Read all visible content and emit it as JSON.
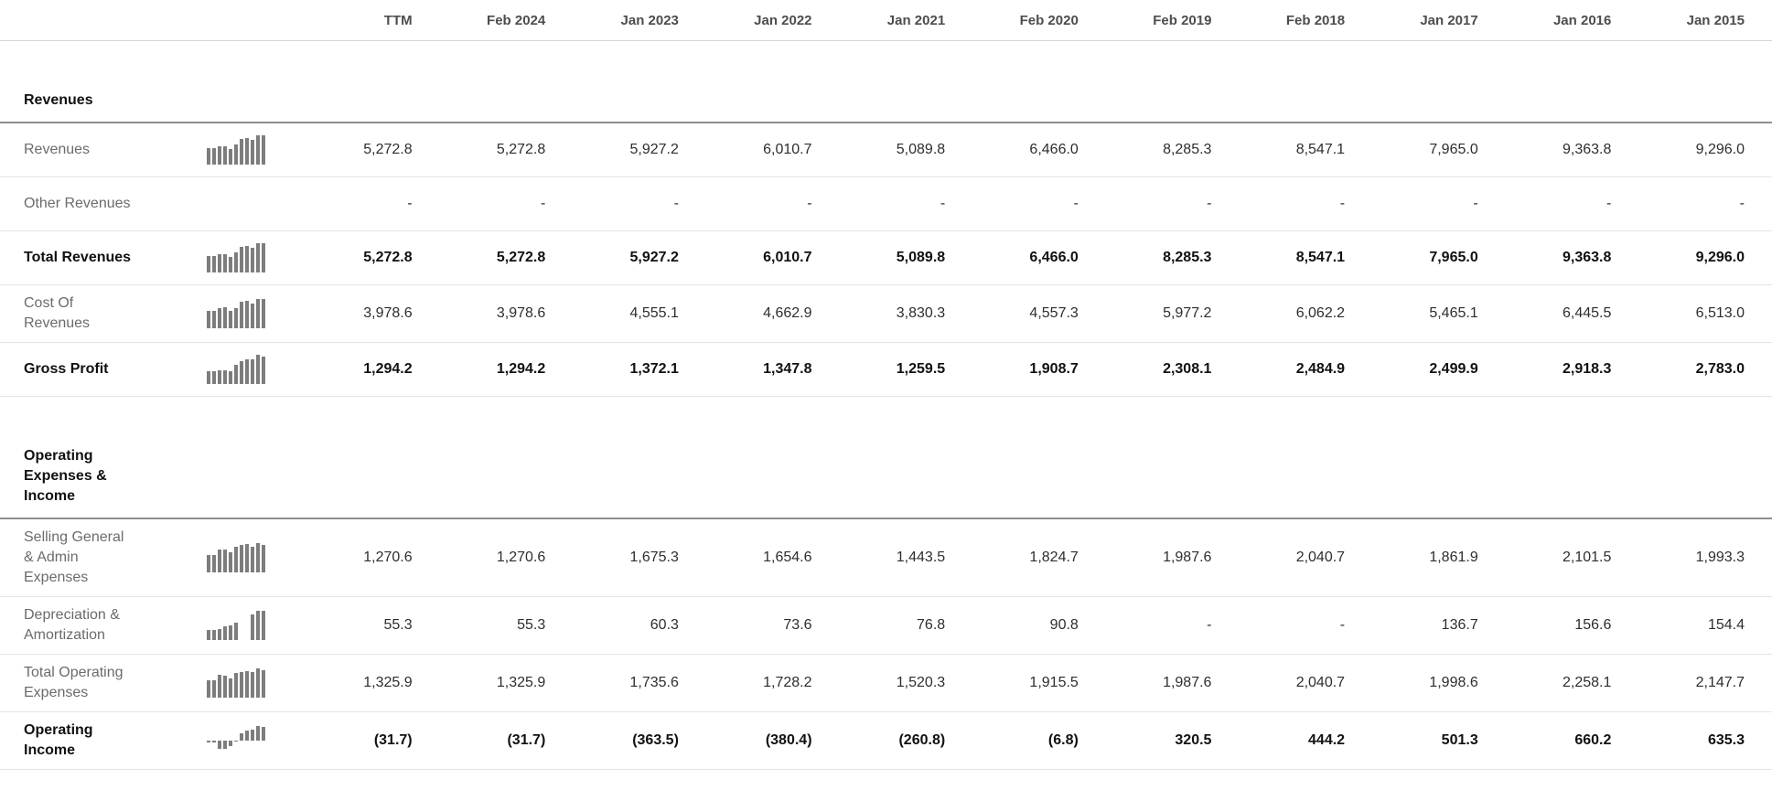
{
  "columns": [
    "TTM",
    "Feb 2024",
    "Jan 2023",
    "Jan 2022",
    "Jan 2021",
    "Feb 2020",
    "Feb 2019",
    "Feb 2018",
    "Jan 2017",
    "Jan 2016",
    "Jan 2015"
  ],
  "sections": [
    {
      "title": "Revenues",
      "rows": [
        {
          "label": "Revenues",
          "bold": false,
          "sparkline": true,
          "values": [
            "5,272.8",
            "5,272.8",
            "5,927.2",
            "6,010.7",
            "5,089.8",
            "6,466.0",
            "8,285.3",
            "8,547.1",
            "7,965.0",
            "9,363.8",
            "9,296.0"
          ]
        },
        {
          "label": "Other Revenues",
          "bold": false,
          "sparkline": false,
          "values": [
            "-",
            "-",
            "-",
            "-",
            "-",
            "-",
            "-",
            "-",
            "-",
            "-",
            "-"
          ]
        },
        {
          "label": "Total Revenues",
          "bold": true,
          "sparkline": true,
          "values": [
            "5,272.8",
            "5,272.8",
            "5,927.2",
            "6,010.7",
            "5,089.8",
            "6,466.0",
            "8,285.3",
            "8,547.1",
            "7,965.0",
            "9,363.8",
            "9,296.0"
          ]
        },
        {
          "label": "Cost Of\nRevenues",
          "bold": false,
          "sparkline": true,
          "values": [
            "3,978.6",
            "3,978.6",
            "4,555.1",
            "4,662.9",
            "3,830.3",
            "4,557.3",
            "5,977.2",
            "6,062.2",
            "5,465.1",
            "6,445.5",
            "6,513.0"
          ]
        },
        {
          "label": "Gross Profit",
          "bold": true,
          "sparkline": true,
          "values": [
            "1,294.2",
            "1,294.2",
            "1,372.1",
            "1,347.8",
            "1,259.5",
            "1,908.7",
            "2,308.1",
            "2,484.9",
            "2,499.9",
            "2,918.3",
            "2,783.0"
          ]
        }
      ]
    },
    {
      "title": "Operating\nExpenses &\nIncome",
      "rows": [
        {
          "label": "Selling General\n& Admin\nExpenses",
          "bold": false,
          "sparkline": true,
          "values": [
            "1,270.6",
            "1,270.6",
            "1,675.3",
            "1,654.6",
            "1,443.5",
            "1,824.7",
            "1,987.6",
            "2,040.7",
            "1,861.9",
            "2,101.5",
            "1,993.3"
          ]
        },
        {
          "label": "Depreciation &\nAmortization",
          "bold": false,
          "sparkline": true,
          "values": [
            "55.3",
            "55.3",
            "60.3",
            "73.6",
            "76.8",
            "90.8",
            "-",
            "-",
            "136.7",
            "156.6",
            "154.4"
          ]
        },
        {
          "label": "Total Operating\nExpenses",
          "bold": false,
          "sparkline": true,
          "values": [
            "1,325.9",
            "1,325.9",
            "1,735.6",
            "1,728.2",
            "1,520.3",
            "1,915.5",
            "1,987.6",
            "2,040.7",
            "1,998.6",
            "2,258.1",
            "2,147.7"
          ]
        },
        {
          "label": "Operating\nIncome",
          "bold": true,
          "sparkline": true,
          "values": [
            "(31.7)",
            "(31.7)",
            "(363.5)",
            "(380.4)",
            "(260.8)",
            "(6.8)",
            "320.5",
            "444.2",
            "501.3",
            "660.2",
            "635.3"
          ]
        }
      ]
    }
  ],
  "colors": {
    "spark_bar": "#7d7d7d",
    "row_divider": "#e4e4e4",
    "header_divider": "#d5d5d5",
    "section_divider": "#8f8f8f",
    "label_text": "#6b6b6b",
    "value_text": "#2e2e2e",
    "bold_text": "#111111",
    "column_header_text": "#4d4d4d"
  }
}
